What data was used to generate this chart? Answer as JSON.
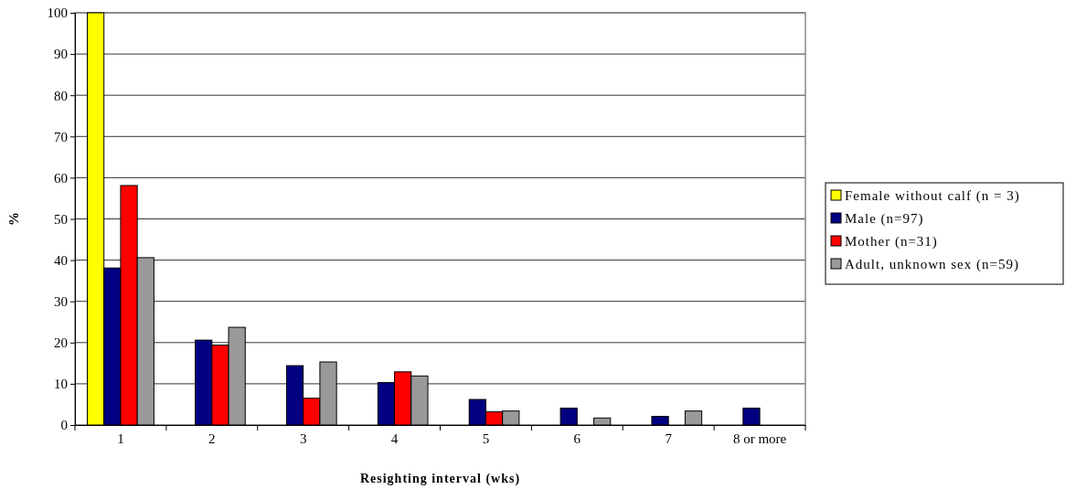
{
  "chart_data": {
    "type": "bar",
    "xlabel": "Resighting interval (wks)",
    "ylabel": "%",
    "categories": [
      "1",
      "2",
      "3",
      "4",
      "5",
      "6",
      "7",
      "8 or more"
    ],
    "series": [
      {
        "name": "Female without calf (n = 3)",
        "color": "#ffff00",
        "values": [
          100,
          0,
          0,
          0,
          0,
          0,
          0,
          0
        ]
      },
      {
        "name": "Male (n=97)",
        "color": "#000080",
        "values": [
          38.1,
          20.6,
          14.4,
          10.3,
          6.2,
          4.1,
          2.1,
          4.1
        ]
      },
      {
        "name": "Mother (n=31)",
        "color": "#ff0000",
        "values": [
          58.1,
          19.4,
          6.5,
          12.9,
          3.2,
          0,
          0,
          0
        ]
      },
      {
        "name": "Adult, unknown sex (n=59)",
        "color": "#999999",
        "values": [
          40.6,
          23.7,
          15.3,
          11.9,
          3.4,
          1.7,
          3.4,
          0
        ]
      }
    ],
    "ylim": [
      0,
      100
    ],
    "yticks": [
      0,
      10,
      20,
      30,
      40,
      50,
      60,
      70,
      80,
      90,
      100
    ],
    "grid": "y",
    "legend": "right"
  }
}
